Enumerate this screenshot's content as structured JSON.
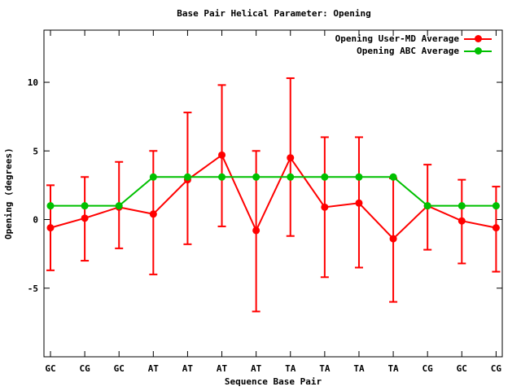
{
  "title": "Base Pair Helical Parameter: Opening",
  "colors": {
    "user_md_series": "#ff0000",
    "abc_series": "#00c000",
    "axis": "#000000",
    "background": "#ffffff"
  },
  "chart_data": {
    "type": "line",
    "title": "Base Pair Helical Parameter: Opening",
    "xlabel": "Sequence Base Pair",
    "ylabel": "Opening (degrees)",
    "categories": [
      "GC",
      "CG",
      "GC",
      "AT",
      "AT",
      "AT",
      "AT",
      "TA",
      "TA",
      "TA",
      "TA",
      "CG",
      "GC",
      "CG"
    ],
    "yticks": [
      10,
      5,
      0,
      -5
    ],
    "ylim": [
      -10,
      13.8
    ],
    "grid": false,
    "legend_position": "top-right-inside",
    "series": [
      {
        "name": "Opening User-MD Average",
        "color": "#ff0000",
        "marker": "circle",
        "has_error_bars": true,
        "values": [
          -0.6,
          0.1,
          0.9,
          0.4,
          2.9,
          4.7,
          -0.8,
          4.5,
          0.9,
          1.2,
          -1.4,
          1.0,
          -0.1,
          -0.6
        ],
        "error_bars": [
          [
            -3.7,
            2.5
          ],
          [
            -3.0,
            3.1
          ],
          [
            -2.1,
            4.2
          ],
          [
            -4.0,
            5.0
          ],
          [
            -1.8,
            7.8
          ],
          [
            -0.5,
            9.8
          ],
          [
            -6.7,
            5.0
          ],
          [
            -1.2,
            10.3
          ],
          [
            -4.2,
            6.0
          ],
          [
            -3.5,
            6.0
          ],
          [
            -6.0,
            3.0
          ],
          [
            -2.2,
            4.0
          ],
          [
            -3.2,
            2.9
          ],
          [
            -3.8,
            2.4
          ]
        ]
      },
      {
        "name": "Opening ABC Average",
        "color": "#00c000",
        "marker": "circle",
        "has_error_bars": false,
        "values": [
          1.0,
          1.0,
          1.0,
          3.1,
          3.1,
          3.1,
          3.1,
          3.1,
          3.1,
          3.1,
          3.1,
          1.0,
          1.0,
          1.0
        ]
      }
    ]
  }
}
